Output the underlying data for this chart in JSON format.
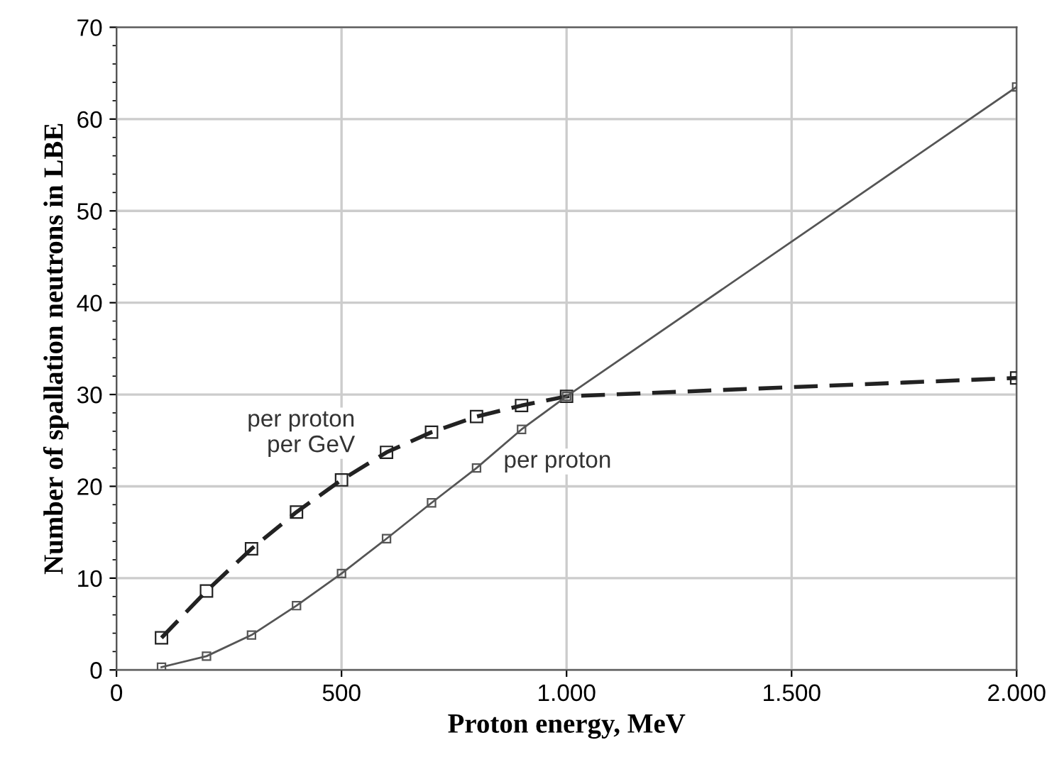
{
  "chart_data": {
    "type": "line",
    "xlabel": "Proton energy, MeV",
    "ylabel": "Number of spallation neutrons in LBE",
    "x": [
      100,
      200,
      300,
      400,
      500,
      600,
      700,
      800,
      900,
      1000,
      2000
    ],
    "series": [
      {
        "name": "per proton per GeV",
        "color": "#222222",
        "line_style": "dashed",
        "values": [
          3.5,
          8.6,
          13.2,
          17.2,
          20.7,
          23.7,
          25.9,
          27.6,
          28.8,
          29.8,
          31.8
        ]
      },
      {
        "name": "per proton",
        "color": "#555555",
        "line_style": "solid",
        "values": [
          0.3,
          1.5,
          3.8,
          7,
          10.5,
          14.3,
          18.2,
          22,
          26.2,
          29.8,
          63.5
        ]
      }
    ],
    "xlim": [
      0,
      2000
    ],
    "ylim": [
      0,
      70
    ],
    "xticks": [
      0,
      500,
      {
        "value": 1000,
        "label": "1.000"
      },
      {
        "value": 1500,
        "label": "1.500"
      },
      {
        "value": 2000,
        "label": "2.000"
      }
    ],
    "yticks": [
      0,
      10,
      20,
      30,
      40,
      50,
      60,
      70
    ],
    "grid": true,
    "marker": "square"
  }
}
